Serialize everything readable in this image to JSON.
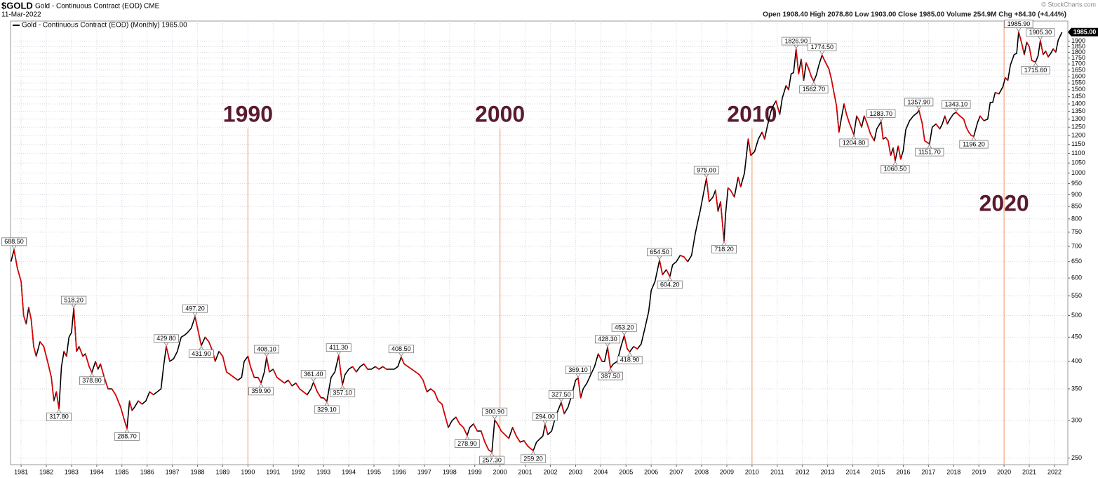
{
  "chart_data": {
    "type": "line",
    "symbol": "$GOLD",
    "name": "Gold - Continuous Contract (EOD) CME",
    "date": "11-Mar-2022",
    "quote": "Open 1908.40  High 2078.80  Low 1903.00  Close 1985.00  Volume 254.9M  Chg +84.30 (+4.44%)",
    "credit": "© StockCharts.com",
    "legend": "Gold - Continuous Contract (EOD) (Monthly) 1985.00",
    "last_label": "1985.00",
    "log_scale": true,
    "grid": true,
    "xlim": [
      1980.58,
      2022.53
    ],
    "xticks": [
      1981,
      1982,
      1983,
      1984,
      1985,
      1986,
      1987,
      1988,
      1989,
      1990,
      1991,
      1992,
      1993,
      1994,
      1995,
      1996,
      1997,
      1998,
      1999,
      2000,
      2001,
      2002,
      2003,
      2004,
      2005,
      2006,
      2007,
      2008,
      2009,
      2010,
      2011,
      2012,
      2013,
      2014,
      2015,
      2016,
      2017,
      2018,
      2019,
      2020,
      2021,
      2022
    ],
    "ylim": [
      242,
      2095
    ],
    "yticks": [
      250,
      300,
      350,
      400,
      450,
      500,
      550,
      600,
      650,
      700,
      750,
      800,
      850,
      900,
      950,
      1000,
      1050,
      1100,
      1150,
      1200,
      1250,
      1300,
      1350,
      1400,
      1450,
      1500,
      1550,
      1600,
      1650,
      1700,
      1750,
      1800,
      1850,
      1900
    ],
    "series": [
      {
        "name": "Gold",
        "up_color": "#000000",
        "down_color": "#e00000",
        "x": [
          1980.6,
          1980.72,
          1980.85,
          1981.0,
          1981.1,
          1981.2,
          1981.3,
          1981.4,
          1981.5,
          1981.6,
          1981.75,
          1981.9,
          1982.05,
          1982.2,
          1982.3,
          1982.4,
          1982.5,
          1982.6,
          1982.7,
          1982.8,
          1982.9,
          1983.0,
          1983.09,
          1983.2,
          1983.3,
          1983.45,
          1983.55,
          1983.7,
          1983.81,
          1983.95,
          1984.05,
          1984.15,
          1984.3,
          1984.45,
          1984.6,
          1984.75,
          1984.95,
          1985.1,
          1985.2,
          1985.3,
          1985.4,
          1985.5,
          1985.65,
          1985.8,
          1985.95,
          1986.1,
          1986.25,
          1986.4,
          1986.55,
          1986.65,
          1986.76,
          1986.9,
          1987.05,
          1987.2,
          1987.35,
          1987.5,
          1987.6,
          1987.75,
          1987.9,
          1988.0,
          1988.15,
          1988.3,
          1988.45,
          1988.6,
          1988.7,
          1988.85,
          1989.0,
          1989.15,
          1989.3,
          1989.45,
          1989.6,
          1989.75,
          1989.85,
          1990.0,
          1990.1,
          1990.25,
          1990.4,
          1990.52,
          1990.65,
          1990.74,
          1990.85,
          1991.0,
          1991.15,
          1991.3,
          1991.45,
          1991.6,
          1991.75,
          1991.9,
          1992.05,
          1992.2,
          1992.35,
          1992.5,
          1992.6,
          1992.75,
          1992.9,
          1993.0,
          1993.13,
          1993.3,
          1993.45,
          1993.6,
          1993.68,
          1993.75,
          1993.85,
          1994.0,
          1994.15,
          1994.3,
          1994.45,
          1994.6,
          1994.75,
          1994.9,
          1995.05,
          1995.2,
          1995.35,
          1995.5,
          1995.65,
          1995.8,
          1995.95,
          1996.08,
          1996.2,
          1996.35,
          1996.5,
          1996.65,
          1996.8,
          1996.95,
          1997.1,
          1997.25,
          1997.4,
          1997.55,
          1997.7,
          1997.8,
          1997.95,
          1998.1,
          1998.25,
          1998.4,
          1998.55,
          1998.7,
          1998.8,
          1998.95,
          1999.1,
          1999.25,
          1999.4,
          1999.55,
          1999.68,
          1999.79,
          1999.9,
          2000.05,
          2000.2,
          2000.35,
          2000.5,
          2000.65,
          2000.8,
          2000.95,
          2001.1,
          2001.2,
          2001.32,
          2001.45,
          2001.6,
          2001.7,
          2001.79,
          2001.9,
          2002.05,
          2002.2,
          2002.3,
          2002.43,
          2002.55,
          2002.7,
          2002.85,
          2003.0,
          2003.1,
          2003.2,
          2003.3,
          2003.45,
          2003.6,
          2003.75,
          2003.9,
          2004.05,
          2004.15,
          2004.27,
          2004.38,
          2004.5,
          2004.65,
          2004.8,
          2004.93,
          2005.05,
          2005.15,
          2005.3,
          2005.45,
          2005.6,
          2005.75,
          2005.9,
          2006.0,
          2006.15,
          2006.33,
          2006.45,
          2006.6,
          2006.74,
          2006.85,
          2007.0,
          2007.15,
          2007.3,
          2007.45,
          2007.6,
          2007.75,
          2007.85,
          2007.95,
          2008.1,
          2008.19,
          2008.3,
          2008.45,
          2008.55,
          2008.65,
          2008.75,
          2008.89,
          2008.95,
          2009.05,
          2009.15,
          2009.3,
          2009.45,
          2009.55,
          2009.7,
          2009.85,
          2009.95,
          2010.1,
          2010.25,
          2010.4,
          2010.5,
          2010.6,
          2010.75,
          2010.85,
          2010.95,
          2011.1,
          2011.2,
          2011.35,
          2011.45,
          2011.55,
          2011.65,
          2011.75,
          2011.85,
          2011.95,
          2012.05,
          2012.15,
          2012.25,
          2012.35,
          2012.45,
          2012.55,
          2012.65,
          2012.78,
          2012.9,
          2013.05,
          2013.15,
          2013.25,
          2013.35,
          2013.45,
          2013.55,
          2013.65,
          2013.75,
          2013.85,
          2013.95,
          2014.04,
          2014.15,
          2014.25,
          2014.35,
          2014.45,
          2014.55,
          2014.7,
          2014.85,
          2014.95,
          2015.12,
          2015.2,
          2015.3,
          2015.4,
          2015.5,
          2015.6,
          2015.68,
          2015.8,
          2015.9,
          2016.0,
          2016.1,
          2016.25,
          2016.4,
          2016.55,
          2016.62,
          2016.75,
          2016.85,
          2017.04,
          2017.15,
          2017.3,
          2017.45,
          2017.55,
          2017.65,
          2017.75,
          2017.85,
          2018.0,
          2018.1,
          2018.25,
          2018.4,
          2018.5,
          2018.6,
          2018.7,
          2018.8,
          2018.95,
          2019.05,
          2019.2,
          2019.35,
          2019.45,
          2019.55,
          2019.65,
          2019.8,
          2019.95,
          2020.05,
          2020.15,
          2020.25,
          2020.4,
          2020.5,
          2020.58,
          2020.7,
          2020.8,
          2020.9,
          2021.0,
          2021.1,
          2021.25,
          2021.35,
          2021.44,
          2021.55,
          2021.65,
          2021.75,
          2021.85,
          2021.95,
          2022.05,
          2022.15,
          2022.3
        ],
        "values": [
          650,
          688.5,
          630,
          590,
          500,
          480,
          520,
          490,
          430,
          410,
          440,
          430,
          400,
          370,
          330,
          345,
          317.8,
          390,
          420,
          410,
          450,
          460,
          518.2,
          420,
          430,
          410,
          415,
          390,
          378.8,
          400,
          385,
          395,
          370,
          350,
          350,
          340,
          320,
          300,
          288.7,
          330,
          315,
          320,
          330,
          325,
          330,
          345,
          340,
          345,
          350,
          390,
          429.8,
          400,
          405,
          420,
          450,
          455,
          460,
          470,
          497.2,
          470,
          431.9,
          450,
          440,
          420,
          400,
          420,
          410,
          380,
          375,
          370,
          365,
          370,
          400,
          410,
          390,
          370,
          370,
          359.9,
          380,
          408.1,
          380,
          385,
          370,
          365,
          360,
          365,
          355,
          360,
          350,
          345,
          340,
          350,
          361.4,
          345,
          335,
          335,
          329.1,
          370,
          380,
          411.3,
          380,
          357.1,
          375,
          385,
          390,
          380,
          390,
          395,
          385,
          385,
          390,
          385,
          390,
          385,
          385,
          385,
          390,
          408.5,
          395,
          390,
          385,
          380,
          375,
          365,
          345,
          350,
          345,
          330,
          325,
          310,
          290,
          300,
          305,
          295,
          290,
          278.9,
          290,
          295,
          285,
          285,
          270,
          260,
          257.3,
          300.9,
          295,
          285,
          280,
          275,
          290,
          278,
          270,
          272,
          265,
          262,
          259.2,
          270,
          275,
          278,
          294,
          280,
          285,
          305,
          315,
          327.5,
          310,
          320,
          340,
          365,
          369.1,
          335,
          350,
          360,
          375,
          390,
          415,
          400,
          400,
          428.3,
          387.5,
          395,
          400,
          430,
          453.2,
          425,
          418.9,
          430,
          425,
          435,
          470,
          510,
          565,
          590,
          654.5,
          610,
          625,
          604.2,
          640,
          650,
          670,
          665,
          650,
          670,
          745,
          790,
          835,
          920,
          975,
          870,
          890,
          920,
          830,
          870,
          718.2,
          820,
          930,
          920,
          890,
          980,
          935,
          1000,
          1180,
          1090,
          1110,
          1180,
          1220,
          1180,
          1250,
          1350,
          1390,
          1420,
          1330,
          1440,
          1530,
          1500,
          1620,
          1630,
          1826.9,
          1620,
          1740,
          1570,
          1710,
          1660,
          1600,
          1562.7,
          1610,
          1690,
          1774.5,
          1720,
          1660,
          1580,
          1480,
          1390,
          1220,
          1310,
          1400,
          1330,
          1280,
          1240,
          1204.8,
          1320,
          1290,
          1250,
          1320,
          1280,
          1210,
          1170,
          1240,
          1283.7,
          1180,
          1190,
          1170,
          1090,
          1130,
          1060.5,
          1140,
          1070,
          1115,
          1235,
          1290,
          1320,
          1340,
          1357.9,
          1275,
          1170,
          1151.7,
          1250,
          1270,
          1240,
          1270,
          1320,
          1270,
          1300,
          1335,
          1343.1,
          1320,
          1300,
          1250,
          1220,
          1200,
          1196.2,
          1280,
          1320,
          1290,
          1300,
          1410,
          1410,
          1480,
          1470,
          1520,
          1590,
          1570,
          1690,
          1780,
          1790,
          1985.9,
          1880,
          1780,
          1890,
          1850,
          1730,
          1715.6,
          1770,
          1905.3,
          1780,
          1810,
          1760,
          1790,
          1830,
          1800,
          1910,
          1985
        ]
      }
    ],
    "callouts": {
      "x": [
        1980.72,
        1982.5,
        1983.09,
        1983.81,
        1985.2,
        1986.76,
        1987.9,
        1988.15,
        1990.74,
        1990.52,
        1992.6,
        1993.13,
        1993.6,
        1993.75,
        1996.08,
        1998.7,
        1999.68,
        1999.79,
        2001.32,
        2001.79,
        2002.43,
        2003.1,
        2004.27,
        2004.38,
        2004.93,
        2005.15,
        2006.33,
        2006.74,
        2008.19,
        2008.89,
        2011.75,
        2012.45,
        2012.78,
        2014.04,
        2015.12,
        2015.68,
        2016.62,
        2017.04,
        2018.1,
        2018.8,
        2020.58,
        2021.25,
        2021.44
      ],
      "values": [
        688.5,
        317.8,
        518.2,
        378.8,
        288.7,
        429.8,
        497.2,
        431.9,
        408.1,
        359.9,
        361.4,
        329.1,
        411.3,
        357.1,
        408.5,
        278.9,
        257.3,
        300.9,
        259.2,
        294,
        327.5,
        369.1,
        428.3,
        387.5,
        453.2,
        418.9,
        654.5,
        604.2,
        975,
        718.2,
        1826.9,
        1562.7,
        1774.5,
        1204.8,
        1283.7,
        1060.5,
        1357.9,
        1151.7,
        1343.1,
        1196.2,
        1985.9,
        1715.6,
        1905.3
      ],
      "value_labels": [
        "688.50",
        "317.80",
        "518.20",
        "378.80",
        "288.70",
        "429.80",
        "497.20",
        "431.90",
        "408.10",
        "359.90",
        "361.40",
        "329.10",
        "411.30",
        "357.10",
        "408.50",
        "278.90",
        "257.30",
        "300.90",
        "259.20",
        "294.00",
        "327.50",
        "369.10",
        "428.30",
        "387.50",
        "453.20",
        "418.90",
        "654.50",
        "604.20",
        "975.00",
        "718.20",
        "1826.90",
        "1562.70",
        "1774.50",
        "1204.80",
        "1283.70",
        "1060.50",
        "1357.90",
        "1151.70",
        "1343.10",
        "1196.20",
        "1985.90",
        "1715.60",
        "1905.30"
      ]
    },
    "decade_markers": {
      "x": [
        1990,
        2000,
        2010,
        2020
      ],
      "color": "#f4a582",
      "text_color": "#5a1a2e"
    }
  }
}
